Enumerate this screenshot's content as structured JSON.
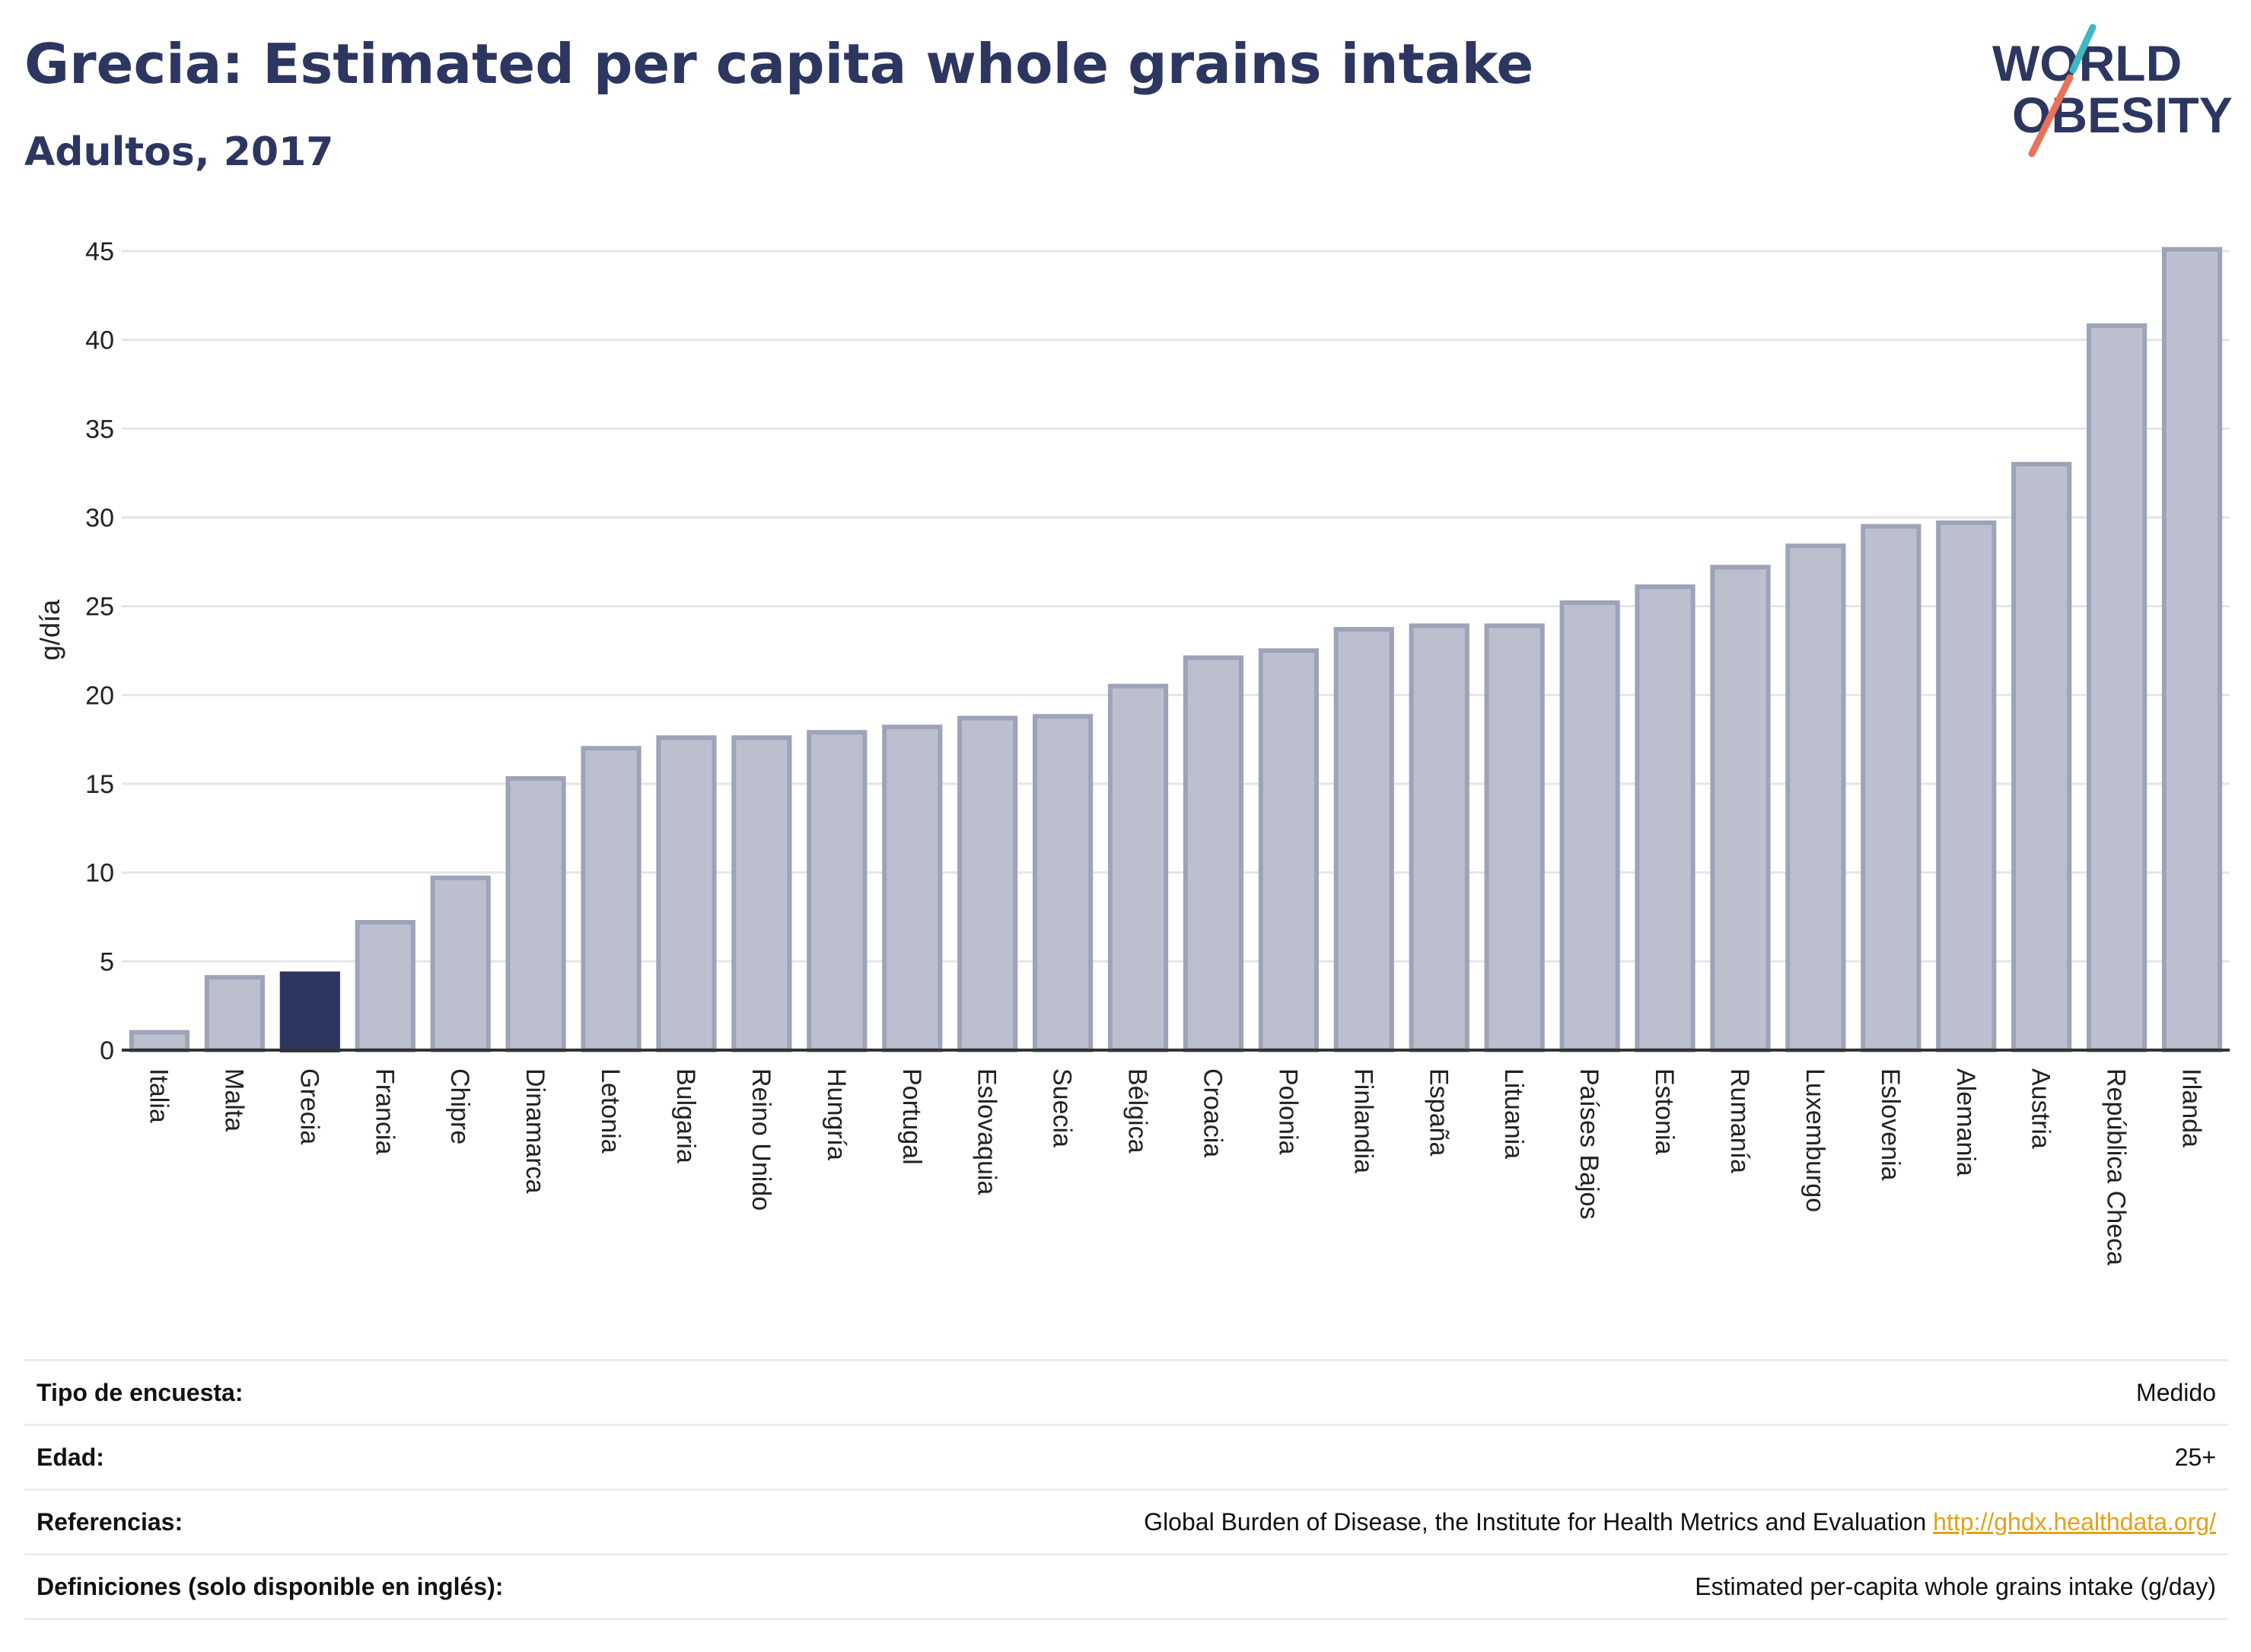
{
  "header": {
    "title": "Grecia: Estimated per capita whole grains intake",
    "subtitle": "Adultos, 2017"
  },
  "logo": {
    "line1": "WORLD",
    "line2": "OBESITY",
    "colors": {
      "text": "#2c3661",
      "slash_teal": "#3db8c0",
      "slash_coral": "#e8735a"
    }
  },
  "chart_data": {
    "type": "bar",
    "ylabel": "g/día",
    "ylim": [
      0,
      45
    ],
    "yticks": [
      0,
      5,
      10,
      15,
      20,
      25,
      30,
      35,
      40,
      45
    ],
    "grid": true,
    "highlight": "Grecia",
    "colors": {
      "bar": "#bcc0ce",
      "bar_border": "#9da3b8",
      "highlight": "#2c3661",
      "grid": "#e6e6ea",
      "axis": "#333333"
    },
    "categories": [
      "Italia",
      "Malta",
      "Grecia",
      "Francia",
      "Chipre",
      "Dinamarca",
      "Letonia",
      "Bulgaria",
      "Reino Unido",
      "Hungría",
      "Portugal",
      "Eslovaquia",
      "Suecia",
      "Bélgica",
      "Croacia",
      "Polonia",
      "Finlandia",
      "España",
      "Lituania",
      "Países Bajos",
      "Estonia",
      "Rumanía",
      "Luxemburgo",
      "Eslovenia",
      "Alemania",
      "Austria",
      "República Checa",
      "Irlanda"
    ],
    "values": [
      1.0,
      4.1,
      4.3,
      7.2,
      9.7,
      15.3,
      17.0,
      17.6,
      17.6,
      17.9,
      18.2,
      18.7,
      18.8,
      20.5,
      22.1,
      22.5,
      23.7,
      23.9,
      23.9,
      25.2,
      26.1,
      27.2,
      28.4,
      29.5,
      29.7,
      33.0,
      40.8,
      45.1
    ]
  },
  "details": {
    "survey_type": {
      "label": "Tipo de encuesta:",
      "value": "Medido"
    },
    "age": {
      "label": "Edad:",
      "value": "25+"
    },
    "references": {
      "label": "Referencias:",
      "value": "Global Burden of Disease, the Institute for Health Metrics and Evaluation",
      "link": "http://ghdx.healthdata.org/"
    },
    "definitions": {
      "label": "Definiciones (solo disponible en inglés):",
      "value": "Estimated per-capita whole grains intake (g/day)"
    }
  }
}
